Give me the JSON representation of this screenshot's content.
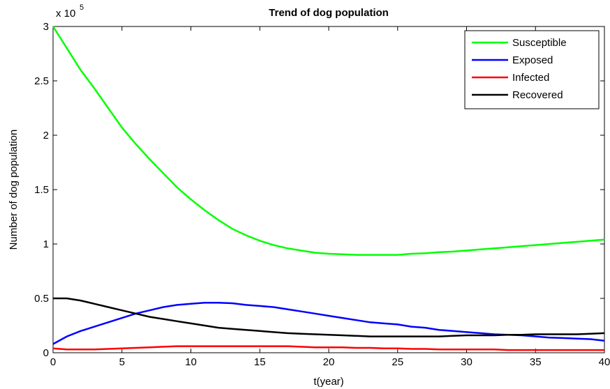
{
  "chart_data": {
    "type": "line",
    "title": "Trend of dog population",
    "x_label": "t(year)",
    "y_label": "Number of dog population",
    "y_scale_label": {
      "base": "x 10",
      "exponent": "5"
    },
    "x": [
      0,
      1,
      2,
      3,
      4,
      5,
      6,
      7,
      8,
      9,
      10,
      11,
      12,
      13,
      14,
      15,
      16,
      17,
      18,
      19,
      20,
      21,
      22,
      23,
      24,
      25,
      26,
      27,
      28,
      29,
      30,
      31,
      32,
      33,
      34,
      35,
      36,
      37,
      38,
      39,
      40
    ],
    "series": [
      {
        "name": "Susceptible",
        "color": "#00ff00",
        "values": [
          3.0,
          2.8,
          2.6,
          2.43,
          2.25,
          2.07,
          1.92,
          1.78,
          1.65,
          1.52,
          1.41,
          1.31,
          1.22,
          1.14,
          1.08,
          1.03,
          0.99,
          0.96,
          0.94,
          0.92,
          0.91,
          0.905,
          0.9,
          0.9,
          0.9,
          0.9,
          0.91,
          0.915,
          0.925,
          0.93,
          0.94,
          0.95,
          0.96,
          0.97,
          0.98,
          0.99,
          1.0,
          1.01,
          1.02,
          1.03,
          1.04
        ]
      },
      {
        "name": "Exposed",
        "color": "#0000ff",
        "values": [
          0.08,
          0.15,
          0.2,
          0.24,
          0.28,
          0.32,
          0.36,
          0.39,
          0.42,
          0.44,
          0.45,
          0.46,
          0.46,
          0.455,
          0.44,
          0.43,
          0.42,
          0.4,
          0.38,
          0.36,
          0.34,
          0.32,
          0.3,
          0.28,
          0.27,
          0.26,
          0.24,
          0.23,
          0.21,
          0.2,
          0.19,
          0.18,
          0.17,
          0.165,
          0.16,
          0.15,
          0.14,
          0.135,
          0.13,
          0.125,
          0.11
        ]
      },
      {
        "name": "Infected",
        "color": "#ff0000",
        "values": [
          0.04,
          0.03,
          0.03,
          0.03,
          0.035,
          0.04,
          0.045,
          0.05,
          0.055,
          0.06,
          0.06,
          0.06,
          0.06,
          0.06,
          0.06,
          0.06,
          0.06,
          0.06,
          0.055,
          0.05,
          0.05,
          0.05,
          0.045,
          0.045,
          0.04,
          0.04,
          0.035,
          0.035,
          0.03,
          0.03,
          0.03,
          0.03,
          0.03,
          0.025,
          0.025,
          0.025,
          0.025,
          0.025,
          0.025,
          0.025,
          0.025
        ]
      },
      {
        "name": "Recovered",
        "color": "#000000",
        "values": [
          0.5,
          0.5,
          0.48,
          0.45,
          0.42,
          0.39,
          0.36,
          0.33,
          0.31,
          0.29,
          0.27,
          0.25,
          0.23,
          0.22,
          0.21,
          0.2,
          0.19,
          0.18,
          0.175,
          0.17,
          0.165,
          0.16,
          0.155,
          0.15,
          0.15,
          0.15,
          0.15,
          0.15,
          0.15,
          0.155,
          0.16,
          0.16,
          0.16,
          0.165,
          0.165,
          0.17,
          0.17,
          0.17,
          0.17,
          0.175,
          0.18
        ]
      }
    ],
    "xlim": [
      0,
      40
    ],
    "xticks": [
      0,
      5,
      10,
      15,
      20,
      25,
      30,
      35,
      40
    ],
    "ylim": [
      0,
      3
    ],
    "yticks": [
      0,
      0.5,
      1,
      1.5,
      2,
      2.5,
      3
    ],
    "legend": "top-right"
  }
}
